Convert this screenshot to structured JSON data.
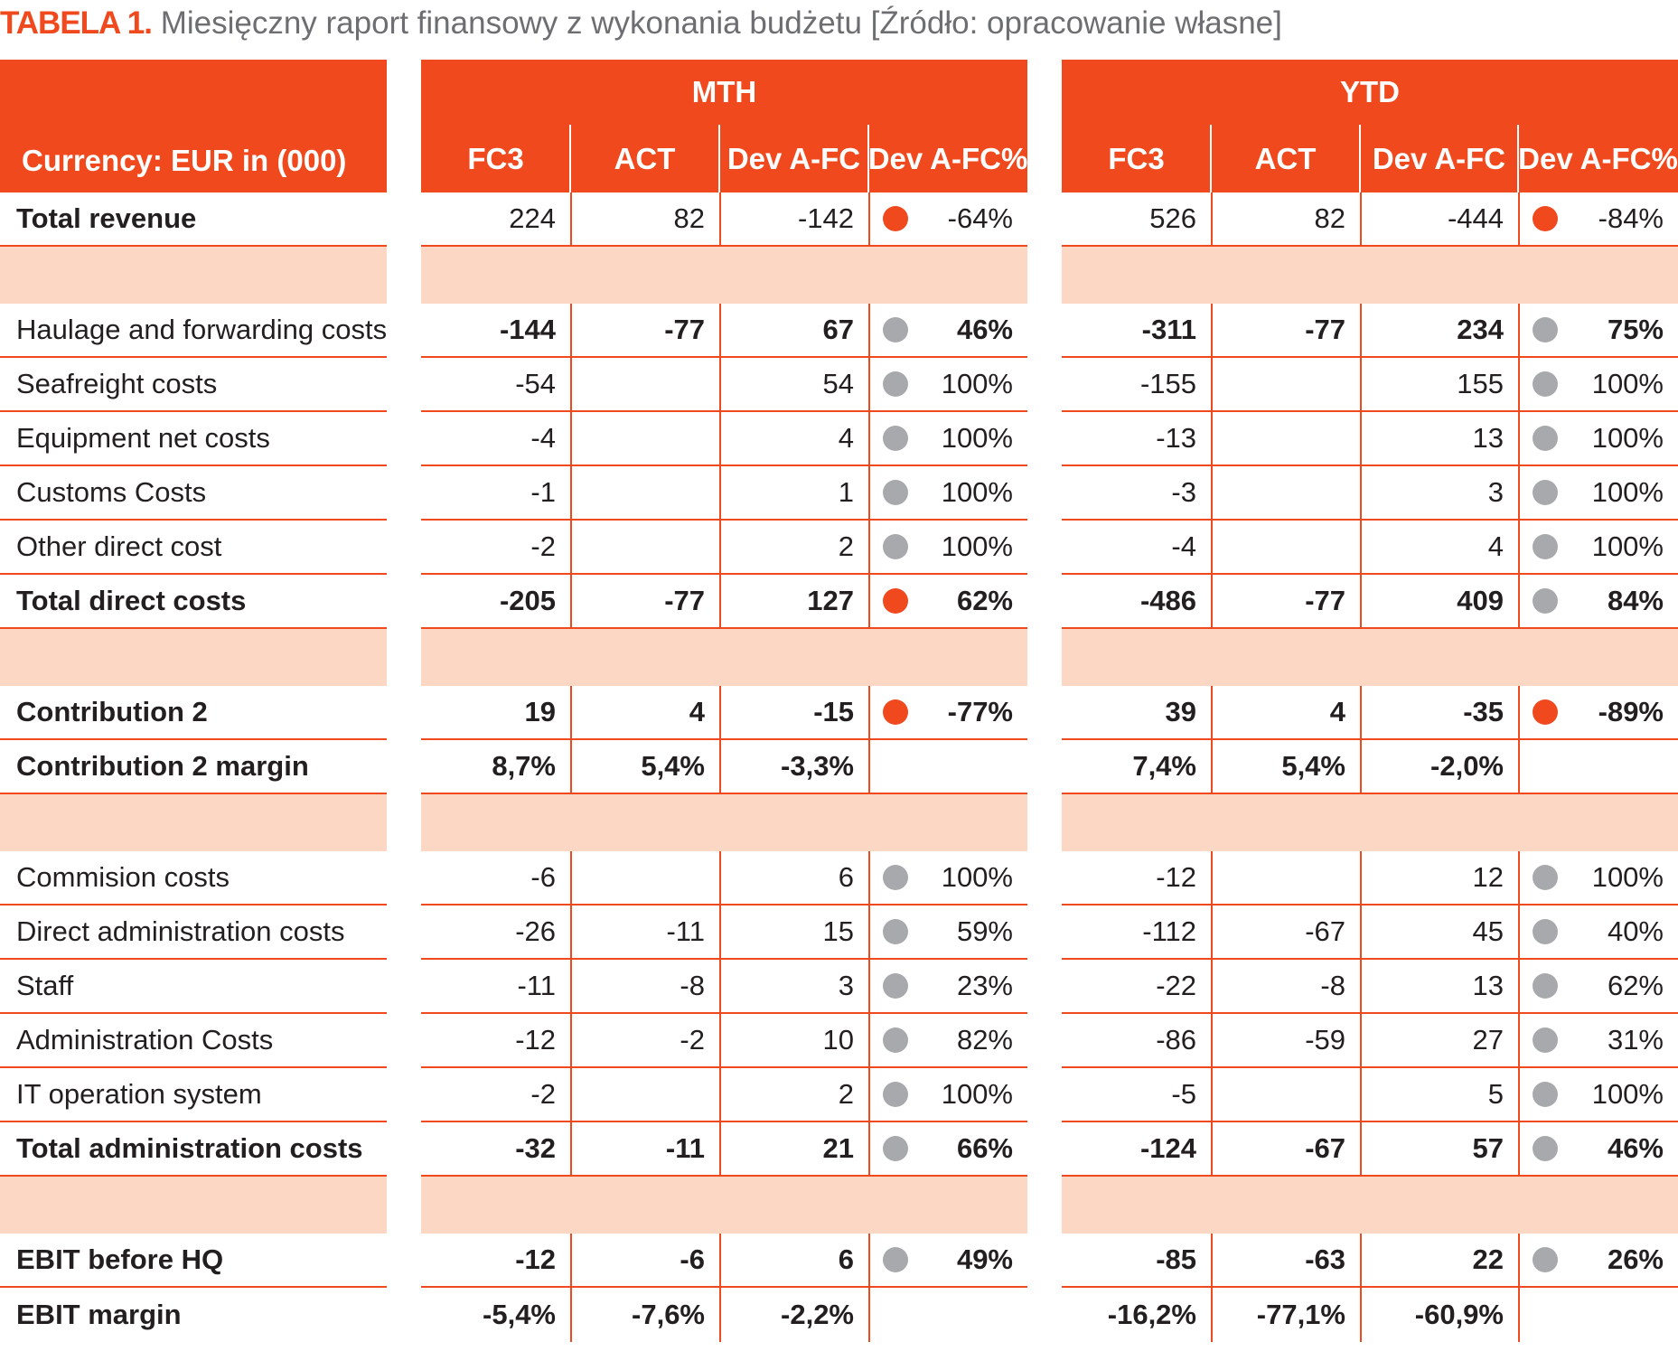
{
  "caption": {
    "label": "TABELA 1.",
    "text": "Miesięczny raport finansowy z wykonania budżetu [Źródło: opracowanie własne]"
  },
  "colors": {
    "accent": "#f0491e",
    "spacer": "#fcd7c3",
    "dot_red": "#f0491e",
    "dot_grey": "#a7a9ac"
  },
  "header": {
    "currency_label": "Currency: EUR in (000)",
    "mth_label": "MTH",
    "ytd_label": "YTD",
    "columns": [
      "FC3",
      "ACT",
      "Dev A-FC",
      "Dev A-FC%"
    ]
  },
  "rows": [
    {
      "type": "data",
      "label": "Total revenue",
      "label_bold": true,
      "bold": false,
      "mth": [
        "224",
        "82",
        "-142",
        "-64%"
      ],
      "mth_dot": "red",
      "ytd": [
        "526",
        "82",
        "-444",
        "-84%"
      ],
      "ytd_dot": "red"
    },
    {
      "type": "spacer"
    },
    {
      "type": "data",
      "label": "Haulage and forwarding costs",
      "label_bold": false,
      "bold": true,
      "mth": [
        "-144",
        "-77",
        "67",
        "46%"
      ],
      "mth_dot": "grey",
      "ytd": [
        "-311",
        "-77",
        "234",
        "75%"
      ],
      "ytd_dot": "grey"
    },
    {
      "type": "data",
      "label": "Seafreight costs",
      "label_bold": false,
      "bold": false,
      "mth": [
        "-54",
        "",
        "54",
        "100%"
      ],
      "mth_dot": "grey",
      "ytd": [
        "-155",
        "",
        "155",
        "100%"
      ],
      "ytd_dot": "grey"
    },
    {
      "type": "data",
      "label": "Equipment net costs",
      "label_bold": false,
      "bold": false,
      "mth": [
        "-4",
        "",
        "4",
        "100%"
      ],
      "mth_dot": "grey",
      "ytd": [
        "-13",
        "",
        "13",
        "100%"
      ],
      "ytd_dot": "grey"
    },
    {
      "type": "data",
      "label": "Customs Costs",
      "label_bold": false,
      "bold": false,
      "mth": [
        "-1",
        "",
        "1",
        "100%"
      ],
      "mth_dot": "grey",
      "ytd": [
        "-3",
        "",
        "3",
        "100%"
      ],
      "ytd_dot": "grey"
    },
    {
      "type": "data",
      "label": "Other direct cost",
      "label_bold": false,
      "bold": false,
      "mth": [
        "-2",
        "",
        "2",
        "100%"
      ],
      "mth_dot": "grey",
      "ytd": [
        "-4",
        "",
        "4",
        "100%"
      ],
      "ytd_dot": "grey"
    },
    {
      "type": "data",
      "label": "Total direct costs",
      "label_bold": true,
      "bold": true,
      "mth": [
        "-205",
        "-77",
        "127",
        "62%"
      ],
      "mth_dot": "red",
      "ytd": [
        "-486",
        "-77",
        "409",
        "84%"
      ],
      "ytd_dot": "grey"
    },
    {
      "type": "spacer"
    },
    {
      "type": "data",
      "label": "Contribution 2",
      "label_bold": true,
      "bold": true,
      "mth": [
        "19",
        "4",
        "-15",
        "-77%"
      ],
      "mth_dot": "red",
      "ytd": [
        "39",
        "4",
        "-35",
        "-89%"
      ],
      "ytd_dot": "red"
    },
    {
      "type": "data",
      "label": "Contribution 2 margin",
      "label_bold": true,
      "bold": true,
      "mth": [
        "8,7%",
        "5,4%",
        "-3,3%",
        ""
      ],
      "mth_dot": "",
      "ytd": [
        "7,4%",
        "5,4%",
        "-2,0%",
        ""
      ],
      "ytd_dot": ""
    },
    {
      "type": "spacer"
    },
    {
      "type": "data",
      "label": "Commision costs",
      "label_bold": false,
      "bold": false,
      "mth": [
        "-6",
        "",
        "6",
        "100%"
      ],
      "mth_dot": "grey",
      "ytd": [
        "-12",
        "",
        "12",
        "100%"
      ],
      "ytd_dot": "grey"
    },
    {
      "type": "data",
      "label": "Direct administration costs",
      "label_bold": false,
      "bold": false,
      "mth": [
        "-26",
        "-11",
        "15",
        "59%"
      ],
      "mth_dot": "grey",
      "ytd": [
        "-112",
        "-67",
        "45",
        "40%"
      ],
      "ytd_dot": "grey"
    },
    {
      "type": "data",
      "label": "Staff",
      "label_bold": false,
      "bold": false,
      "mth": [
        "-11",
        "-8",
        "3",
        "23%"
      ],
      "mth_dot": "grey",
      "ytd": [
        "-22",
        "-8",
        "13",
        "62%"
      ],
      "ytd_dot": "grey"
    },
    {
      "type": "data",
      "label": "Administration Costs",
      "label_bold": false,
      "bold": false,
      "mth": [
        "-12",
        "-2",
        "10",
        "82%"
      ],
      "mth_dot": "grey",
      "ytd": [
        "-86",
        "-59",
        "27",
        "31%"
      ],
      "ytd_dot": "grey"
    },
    {
      "type": "data",
      "label": "IT operation system",
      "label_bold": false,
      "bold": false,
      "mth": [
        "-2",
        "",
        "2",
        "100%"
      ],
      "mth_dot": "grey",
      "ytd": [
        "-5",
        "",
        "5",
        "100%"
      ],
      "ytd_dot": "grey"
    },
    {
      "type": "data",
      "label": "Total administration costs",
      "label_bold": true,
      "bold": true,
      "mth": [
        "-32",
        "-11",
        "21",
        "66%"
      ],
      "mth_dot": "grey",
      "ytd": [
        "-124",
        "-67",
        "57",
        "46%"
      ],
      "ytd_dot": "grey"
    },
    {
      "type": "spacer"
    },
    {
      "type": "data",
      "label": "EBIT before HQ",
      "label_bold": true,
      "bold": true,
      "mth": [
        "-12",
        "-6",
        "6",
        "49%"
      ],
      "mth_dot": "grey",
      "ytd": [
        "-85",
        "-63",
        "22",
        "26%"
      ],
      "ytd_dot": "grey"
    },
    {
      "type": "data",
      "label": "EBIT margin",
      "label_bold": true,
      "bold": true,
      "mth": [
        "-5,4%",
        "-7,6%",
        "-2,2%",
        ""
      ],
      "mth_dot": "",
      "ytd": [
        "-16,2%",
        "-77,1%",
        "-60,9%",
        ""
      ],
      "ytd_dot": ""
    }
  ]
}
